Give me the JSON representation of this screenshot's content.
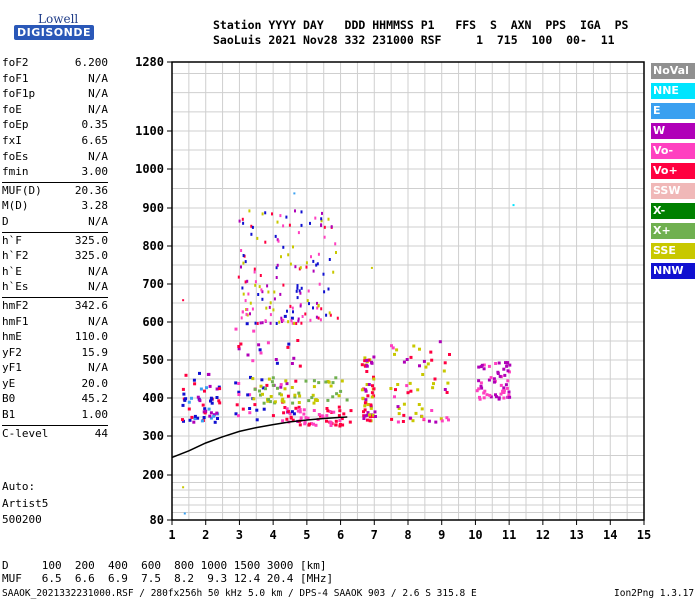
{
  "logo": {
    "line1": "Lowell",
    "line2": "DIGISONDE"
  },
  "header": {
    "line1": "Station YYYY DAY   DDD HHMMSS P1   FFS  S  AXN  PPS  IGA  PS",
    "line2": "SaoLuis 2021 Nov28 332 231000 RSF     1  715  100  00-  11"
  },
  "params": [
    {
      "name": "foF2",
      "value": "6.200"
    },
    {
      "name": "foF1",
      "value": "N/A"
    },
    {
      "name": "foF1p",
      "value": "N/A"
    },
    {
      "name": "foE",
      "value": "N/A"
    },
    {
      "name": "foEp",
      "value": "0.35"
    },
    {
      "name": "fxI",
      "value": "6.65"
    },
    {
      "name": "foEs",
      "value": "N/A"
    },
    {
      "name": "fmin",
      "value": "3.00"
    },
    {
      "name": "MUF(D)",
      "value": "20.36"
    },
    {
      "name": "M(D)",
      "value": "3.28"
    },
    {
      "name": "D",
      "value": "N/A"
    },
    {
      "name": "h`F",
      "value": "325.0"
    },
    {
      "name": "h`F2",
      "value": "325.0"
    },
    {
      "name": "h`E",
      "value": "N/A"
    },
    {
      "name": "h`Es",
      "value": "N/A"
    },
    {
      "name": "hmF2",
      "value": "342.6"
    },
    {
      "name": "hmF1",
      "value": "N/A"
    },
    {
      "name": "hmE",
      "value": "110.0"
    },
    {
      "name": "yF2",
      "value": "15.9"
    },
    {
      "name": "yF1",
      "value": "N/A"
    },
    {
      "name": "yE",
      "value": "20.0"
    },
    {
      "name": "B0",
      "value": "45.2"
    },
    {
      "name": "B1",
      "value": "1.00"
    },
    {
      "name": "C-level",
      "value": "44"
    }
  ],
  "auto": {
    "line1": "Auto:",
    "line2": "Artist5",
    "line3": "500200"
  },
  "legend": [
    {
      "label": "NoVal",
      "color": "#909090"
    },
    {
      "label": "NNE",
      "color": "#00e5ff"
    },
    {
      "label": "E",
      "color": "#3aa0f0"
    },
    {
      "label": "W",
      "color": "#b000b8"
    },
    {
      "label": "Vo-",
      "color": "#ff40c0"
    },
    {
      "label": "Vo+",
      "color": "#ff0040"
    },
    {
      "label": "SSW",
      "color": "#f0b8b8"
    },
    {
      "label": "X-",
      "color": "#008000"
    },
    {
      "label": "X+",
      "color": "#70b050"
    },
    {
      "label": "SSE",
      "color": "#c8c800"
    },
    {
      "label": "NNW",
      "color": "#1010d0"
    }
  ],
  "muf_table": {
    "line1": "D     100  200  400  600  800 1000 1500 3000 [km]",
    "line2": "MUF   6.5  6.6  6.9  7.5  8.2  9.3 12.4 20.4 [MHz]"
  },
  "footer": {
    "left": "SAAOK_2021332231000.RSF / 280fx256h 50 kHz 5.0 km / DPS-4 SAAOK 903 / 2.6 S 315.8 E",
    "right": "Ion2Png 1.3.17"
  },
  "chart_data": {
    "type": "scatter",
    "x_ticks": [
      "1",
      "2",
      "3",
      "4",
      "5",
      "6",
      "7",
      "8",
      "9",
      "10",
      "11",
      "12",
      "13",
      "14",
      "15"
    ],
    "y_ticks": [
      "80",
      "200",
      "300",
      "400",
      "500",
      "600",
      "700",
      "800",
      "900",
      "1000",
      "1100",
      "1280"
    ],
    "xlim": [
      1,
      15
    ],
    "ylim": [
      80,
      1280
    ],
    "y_scale": "nonlinear (log-like virtual height axis)",
    "grid": true,
    "legend_placement": "right",
    "trace_curve": {
      "x": [
        1.0,
        1.5,
        2.0,
        2.5,
        3.0,
        3.5,
        4.0,
        4.5,
        5.0,
        5.5,
        6.0,
        6.2
      ],
      "y": [
        245,
        262,
        282,
        298,
        312,
        322,
        330,
        337,
        342,
        346,
        349,
        350
      ]
    },
    "clusters": [
      {
        "x_range": [
          1.2,
          2.4
        ],
        "y_range": [
          340,
          470
        ],
        "colors": [
          "#1010d0",
          "#b000b8",
          "#ff0040",
          "#3aa0f0"
        ]
      },
      {
        "x_range": [
          2.8,
          4.8
        ],
        "y_range": [
          340,
          620
        ],
        "colors": [
          "#b000b8",
          "#ff40c0",
          "#1010d0",
          "#ff0040"
        ]
      },
      {
        "x_range": [
          3.3,
          6.2
        ],
        "y_range": [
          390,
          460
        ],
        "colors": [
          "#c8c800",
          "#70b050"
        ]
      },
      {
        "x_range": [
          4.2,
          6.3
        ],
        "y_range": [
          330,
          380
        ],
        "colors": [
          "#ff0040",
          "#ff40c0"
        ]
      },
      {
        "x_range": [
          6.6,
          7.0
        ],
        "y_range": [
          340,
          520
        ],
        "colors": [
          "#ff0040",
          "#c8c800",
          "#b000b8"
        ]
      },
      {
        "x_range": [
          7.4,
          9.2
        ],
        "y_range": [
          340,
          560
        ],
        "colors": [
          "#ff0040",
          "#c8c800",
          "#ff40c0",
          "#b000b8"
        ]
      },
      {
        "x_range": [
          10.0,
          11.0
        ],
        "y_range": [
          400,
          500
        ],
        "colors": [
          "#ff40c0",
          "#b000b8"
        ]
      }
    ]
  }
}
